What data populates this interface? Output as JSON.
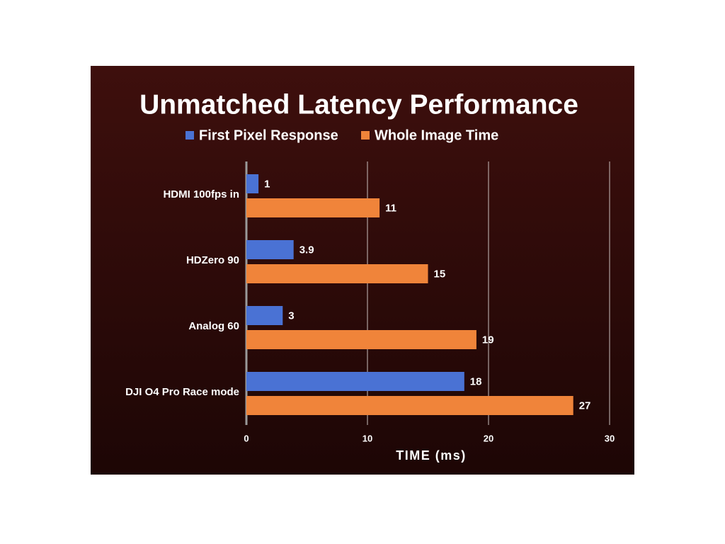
{
  "chart_data": {
    "type": "bar",
    "orientation": "horizontal",
    "title": "Unmatched Latency Performance",
    "categories": [
      "HDMI 100fps in",
      "HDZero 90",
      "Analog 60",
      "DJI O4 Pro Race mode"
    ],
    "series": [
      {
        "name": "First Pixel Response",
        "color": "#4a72d4",
        "values": [
          1,
          3.9,
          3,
          18
        ]
      },
      {
        "name": "Whole Image Time",
        "color": "#f0843a",
        "values": [
          11,
          15,
          19,
          27
        ]
      }
    ],
    "xlabel": "TIME (ms)",
    "xlim": [
      0,
      30
    ],
    "xticks": [
      0,
      10,
      20,
      30
    ],
    "grid": true
  }
}
